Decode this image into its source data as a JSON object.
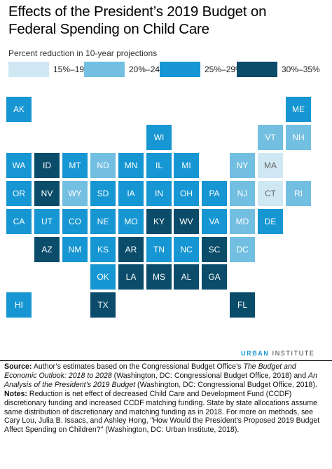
{
  "title_line1": "Effects of the President’s 2019 Budget on",
  "title_line2": "Federal Spending on Child Care",
  "legend_heading": "Percent reduction in 10-year projections",
  "legend": [
    {
      "label": "15%–19%",
      "color": "#cfe8f3"
    },
    {
      "label": "20%–24%",
      "color": "#73bfe2"
    },
    {
      "label": "25%–29%",
      "color": "#1696d2"
    },
    {
      "label": "30%–35%",
      "color": "#0a4c6a"
    }
  ],
  "states": [
    {
      "abbr": "AK",
      "bin": 2,
      "row": 0,
      "col": 0
    },
    {
      "abbr": "ME",
      "bin": 2,
      "row": 0,
      "col": 10
    },
    {
      "abbr": "WI",
      "bin": 2,
      "row": 1,
      "col": 5
    },
    {
      "abbr": "VT",
      "bin": 1,
      "row": 1,
      "col": 9
    },
    {
      "abbr": "NH",
      "bin": 1,
      "row": 1,
      "col": 10
    },
    {
      "abbr": "WA",
      "bin": 2,
      "row": 2,
      "col": 0
    },
    {
      "abbr": "ID",
      "bin": 3,
      "row": 2,
      "col": 1
    },
    {
      "abbr": "MT",
      "bin": 2,
      "row": 2,
      "col": 2
    },
    {
      "abbr": "ND",
      "bin": 1,
      "row": 2,
      "col": 3
    },
    {
      "abbr": "MN",
      "bin": 2,
      "row": 2,
      "col": 4
    },
    {
      "abbr": "IL",
      "bin": 2,
      "row": 2,
      "col": 5
    },
    {
      "abbr": "MI",
      "bin": 2,
      "row": 2,
      "col": 6
    },
    {
      "abbr": "NY",
      "bin": 1,
      "row": 2,
      "col": 8
    },
    {
      "abbr": "MA",
      "bin": 0,
      "row": 2,
      "col": 9
    },
    {
      "abbr": "OR",
      "bin": 2,
      "row": 3,
      "col": 0
    },
    {
      "abbr": "NV",
      "bin": 3,
      "row": 3,
      "col": 1
    },
    {
      "abbr": "WY",
      "bin": 1,
      "row": 3,
      "col": 2
    },
    {
      "abbr": "SD",
      "bin": 2,
      "row": 3,
      "col": 3
    },
    {
      "abbr": "IA",
      "bin": 2,
      "row": 3,
      "col": 4
    },
    {
      "abbr": "IN",
      "bin": 2,
      "row": 3,
      "col": 5
    },
    {
      "abbr": "OH",
      "bin": 2,
      "row": 3,
      "col": 6
    },
    {
      "abbr": "PA",
      "bin": 2,
      "row": 3,
      "col": 7
    },
    {
      "abbr": "NJ",
      "bin": 1,
      "row": 3,
      "col": 8
    },
    {
      "abbr": "CT",
      "bin": 0,
      "row": 3,
      "col": 9
    },
    {
      "abbr": "RI",
      "bin": 1,
      "row": 3,
      "col": 10
    },
    {
      "abbr": "CA",
      "bin": 2,
      "row": 4,
      "col": 0
    },
    {
      "abbr": "UT",
      "bin": 2,
      "row": 4,
      "col": 1
    },
    {
      "abbr": "CO",
      "bin": 2,
      "row": 4,
      "col": 2
    },
    {
      "abbr": "NE",
      "bin": 2,
      "row": 4,
      "col": 3
    },
    {
      "abbr": "MO",
      "bin": 2,
      "row": 4,
      "col": 4
    },
    {
      "abbr": "KY",
      "bin": 3,
      "row": 4,
      "col": 5
    },
    {
      "abbr": "WV",
      "bin": 3,
      "row": 4,
      "col": 6
    },
    {
      "abbr": "VA",
      "bin": 2,
      "row": 4,
      "col": 7
    },
    {
      "abbr": "MD",
      "bin": 1,
      "row": 4,
      "col": 8
    },
    {
      "abbr": "DE",
      "bin": 2,
      "row": 4,
      "col": 9
    },
    {
      "abbr": "AZ",
      "bin": 3,
      "row": 5,
      "col": 1
    },
    {
      "abbr": "NM",
      "bin": 2,
      "row": 5,
      "col": 2
    },
    {
      "abbr": "KS",
      "bin": 2,
      "row": 5,
      "col": 3
    },
    {
      "abbr": "AR",
      "bin": 3,
      "row": 5,
      "col": 4
    },
    {
      "abbr": "TN",
      "bin": 2,
      "row": 5,
      "col": 5
    },
    {
      "abbr": "NC",
      "bin": 2,
      "row": 5,
      "col": 6
    },
    {
      "abbr": "SC",
      "bin": 3,
      "row": 5,
      "col": 7
    },
    {
      "abbr": "DC",
      "bin": 1,
      "row": 5,
      "col": 8
    },
    {
      "abbr": "OK",
      "bin": 2,
      "row": 6,
      "col": 3
    },
    {
      "abbr": "LA",
      "bin": 3,
      "row": 6,
      "col": 4
    },
    {
      "abbr": "MS",
      "bin": 3,
      "row": 6,
      "col": 5
    },
    {
      "abbr": "AL",
      "bin": 3,
      "row": 6,
      "col": 6
    },
    {
      "abbr": "GA",
      "bin": 3,
      "row": 6,
      "col": 7
    },
    {
      "abbr": "HI",
      "bin": 2,
      "row": 7,
      "col": 0
    },
    {
      "abbr": "TX",
      "bin": 3,
      "row": 7,
      "col": 3
    },
    {
      "abbr": "FL",
      "bin": 3,
      "row": 7,
      "col": 8
    }
  ],
  "brand_urban": "URBAN",
  "brand_institute": "INSTITUTE",
  "source_label": "Source:",
  "source_text1": "Author’s estimates based on the Congressional Budget Office’s",
  "source_italic1": "The Budget and Economic Outlook: 2018 to 2028",
  "source_text2": "(Washington, DC: Congressional Budget Office, 2018) and",
  "source_italic2": "An Analysis of the President’s 2019 Budget",
  "source_text3": "(Washington, DC: Congressional Budget Office, 2018).",
  "notes_label": "Notes:",
  "notes_text": "Reduction is net effect of decreased Child Care and Development Fund (CCDF) discretionary funding and increased CCDF matching funding.  State by state allocations assume same distribution of discretionary and matching funding as in 2018. For more on methods, see Cary Lou, Julia B. Issacs, and Ashley Hong, \"How Would the President's Proposed 2019 Budget Affect Spending on Children?\" (Washington, DC: Urban Institute, 2018)."
}
